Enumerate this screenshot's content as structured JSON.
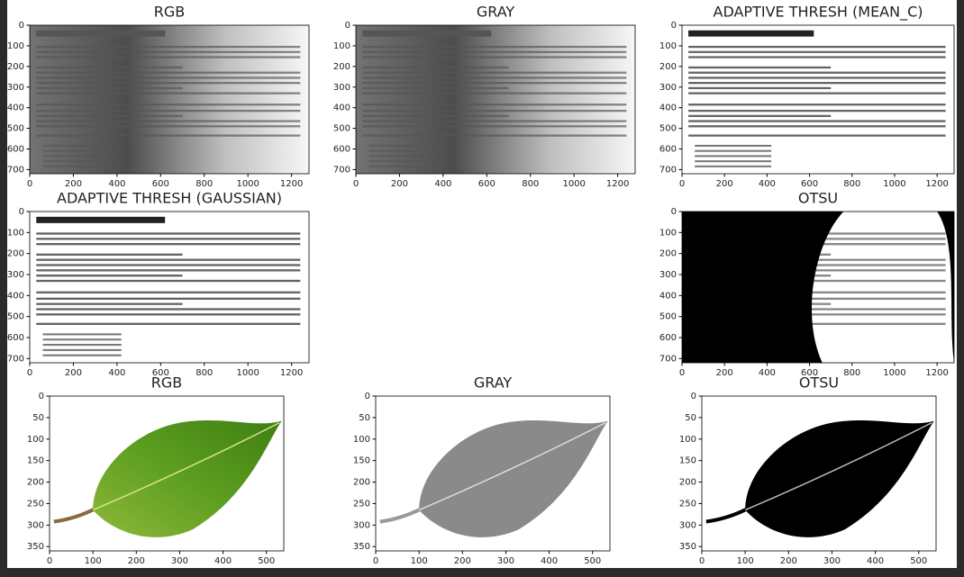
{
  "chart_data": [
    {
      "type": "image",
      "title": "RGB",
      "xlim": [
        0,
        1280
      ],
      "ylim": [
        720,
        0
      ],
      "xticks": [
        0,
        200,
        400,
        600,
        800,
        1000,
        1200
      ],
      "yticks": [
        0,
        100,
        200,
        300,
        400,
        500,
        600,
        700
      ]
    },
    {
      "type": "image",
      "title": "GRAY",
      "xlim": [
        0,
        1280
      ],
      "ylim": [
        720,
        0
      ],
      "xticks": [
        0,
        200,
        400,
        600,
        800,
        1000,
        1200
      ],
      "yticks": [
        0,
        100,
        200,
        300,
        400,
        500,
        600,
        700
      ]
    },
    {
      "type": "image",
      "title": "ADAPTIVE THRESH (MEAN_C)",
      "xlim": [
        0,
        1280
      ],
      "ylim": [
        720,
        0
      ],
      "xticks": [
        0,
        200,
        400,
        600,
        800,
        1000,
        1200
      ],
      "yticks": [
        0,
        100,
        200,
        300,
        400,
        500,
        600,
        700
      ]
    },
    {
      "type": "image",
      "title": "ADAPTIVE THRESH (GAUSSIAN)",
      "xlim": [
        0,
        1280
      ],
      "ylim": [
        720,
        0
      ],
      "xticks": [
        0,
        200,
        400,
        600,
        800,
        1000,
        1200
      ],
      "yticks": [
        0,
        100,
        200,
        300,
        400,
        500,
        600,
        700
      ]
    },
    {
      "type": "image",
      "title": "OTSU",
      "xlim": [
        0,
        1280
      ],
      "ylim": [
        720,
        0
      ],
      "xticks": [
        0,
        200,
        400,
        600,
        800,
        1000,
        1200
      ],
      "yticks": [
        0,
        100,
        200,
        300,
        400,
        500,
        600,
        700
      ]
    },
    {
      "type": "image",
      "title": "RGB",
      "xlim": [
        0,
        540
      ],
      "ylim": [
        360,
        0
      ],
      "xticks": [
        0,
        100,
        200,
        300,
        400,
        500
      ],
      "yticks": [
        0,
        50,
        100,
        150,
        200,
        250,
        300,
        350
      ]
    },
    {
      "type": "image",
      "title": "GRAY",
      "xlim": [
        0,
        540
      ],
      "ylim": [
        360,
        0
      ],
      "xticks": [
        0,
        100,
        200,
        300,
        400,
        500
      ],
      "yticks": [
        0,
        50,
        100,
        150,
        200,
        250,
        300,
        350
      ]
    },
    {
      "type": "image",
      "title": "OTSU",
      "xlim": [
        0,
        540
      ],
      "ylim": [
        360,
        0
      ],
      "xticks": [
        0,
        100,
        200,
        300,
        400,
        500
      ],
      "yticks": [
        0,
        50,
        100,
        150,
        200,
        250,
        300,
        350
      ]
    }
  ]
}
